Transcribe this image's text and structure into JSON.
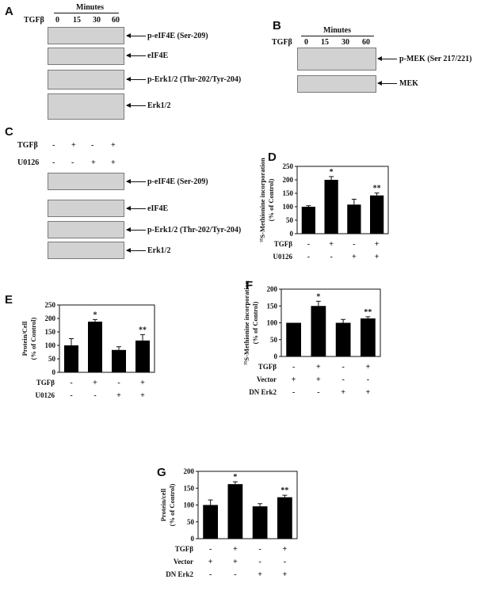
{
  "panel_letters": [
    "A",
    "B",
    "C",
    "D",
    "E",
    "F",
    "G"
  ],
  "panelA": {
    "header": "Minutes",
    "treatment": "TGFβ",
    "timepoints": [
      "0",
      "15",
      "30",
      "60"
    ],
    "bands": [
      "p-eIF4E (Ser-209)",
      "eIF4E",
      "p-Erk1/2 (Thr-202/Tyr-204)",
      "Erk1/2"
    ]
  },
  "panelB": {
    "header": "Minutes",
    "treatment": "TGFβ",
    "timepoints": [
      "0",
      "15",
      "30",
      "60"
    ],
    "bands": [
      "p-MEK (Ser 217/221)",
      "MEK"
    ]
  },
  "panelC": {
    "rows": [
      {
        "label": "TGFβ",
        "signs": [
          "-",
          "+",
          "-",
          "+"
        ]
      },
      {
        "label": "U0126",
        "signs": [
          "-",
          "-",
          "+",
          "+"
        ]
      }
    ],
    "bands": [
      "p-eIF4E (Ser-209)",
      "eIF4E",
      "p-Erk1/2 (Thr-202/Tyr-204)",
      "Erk1/2"
    ]
  },
  "chart_data": [
    {
      "panel": "D",
      "type": "bar",
      "ylabel_line1": "³⁵S-Methionine incorporation",
      "ylabel_line2": "(% of Control)",
      "ylim": [
        0,
        250
      ],
      "yticks": [
        "0",
        "50",
        "100",
        "150",
        "200",
        "250"
      ],
      "values": [
        100,
        200,
        108,
        142
      ],
      "errors": [
        4,
        12,
        20,
        9
      ],
      "annotations": [
        "",
        "*",
        "",
        "**"
      ],
      "condition_rows": [
        {
          "label": "TGFβ",
          "signs": [
            "-",
            "+",
            "-",
            "+"
          ]
        },
        {
          "label": "U0126",
          "signs": [
            "-",
            "-",
            "+",
            "+"
          ]
        }
      ]
    },
    {
      "panel": "E",
      "type": "bar",
      "ylabel_line1": "Protein/Cell",
      "ylabel_line2": "(% of Control)",
      "ylim": [
        0,
        250
      ],
      "yticks": [
        "0",
        "50",
        "100",
        "150",
        "200",
        "250"
      ],
      "values": [
        100,
        188,
        83,
        118
      ],
      "errors": [
        25,
        8,
        12,
        22
      ],
      "annotations": [
        "",
        "*",
        "",
        "**"
      ],
      "condition_rows": [
        {
          "label": "TGFβ",
          "signs": [
            "-",
            "+",
            "-",
            "+"
          ]
        },
        {
          "label": "U0126",
          "signs": [
            "-",
            "-",
            "+",
            "+"
          ]
        }
      ]
    },
    {
      "panel": "F",
      "type": "bar",
      "ylabel_line1": "³⁵S-Methionine incorporation",
      "ylabel_line2": "(% of Control)",
      "ylim": [
        0,
        200
      ],
      "yticks": [
        "0",
        "50",
        "100",
        "150",
        "200"
      ],
      "values": [
        100,
        150,
        100,
        113
      ],
      "errors": [
        0,
        14,
        10,
        5
      ],
      "annotations": [
        "",
        "*",
        "",
        "**"
      ],
      "condition_rows": [
        {
          "label": "TGFβ",
          "signs": [
            "-",
            "+",
            "-",
            "+"
          ]
        },
        {
          "label": "Vector",
          "signs": [
            "+",
            "+",
            "-",
            "-"
          ]
        },
        {
          "label": "DN Erk2",
          "signs": [
            "-",
            "-",
            "+",
            "+"
          ]
        }
      ]
    },
    {
      "panel": "G",
      "type": "bar",
      "ylabel_line1": "Protein/cell",
      "ylabel_line2": "(% of Control)",
      "ylim": [
        0,
        200
      ],
      "yticks": [
        "0",
        "50",
        "100",
        "150",
        "200"
      ],
      "values": [
        100,
        162,
        96,
        123
      ],
      "errors": [
        15,
        7,
        8,
        6
      ],
      "annotations": [
        "",
        "*",
        "",
        "**"
      ],
      "condition_rows": [
        {
          "label": "TGFβ",
          "signs": [
            "-",
            "+",
            "-",
            "+"
          ]
        },
        {
          "label": "Vector",
          "signs": [
            "+",
            "+",
            "-",
            "-"
          ]
        },
        {
          "label": "DN Erk2",
          "signs": [
            "-",
            "-",
            "+",
            "+"
          ]
        }
      ]
    }
  ]
}
